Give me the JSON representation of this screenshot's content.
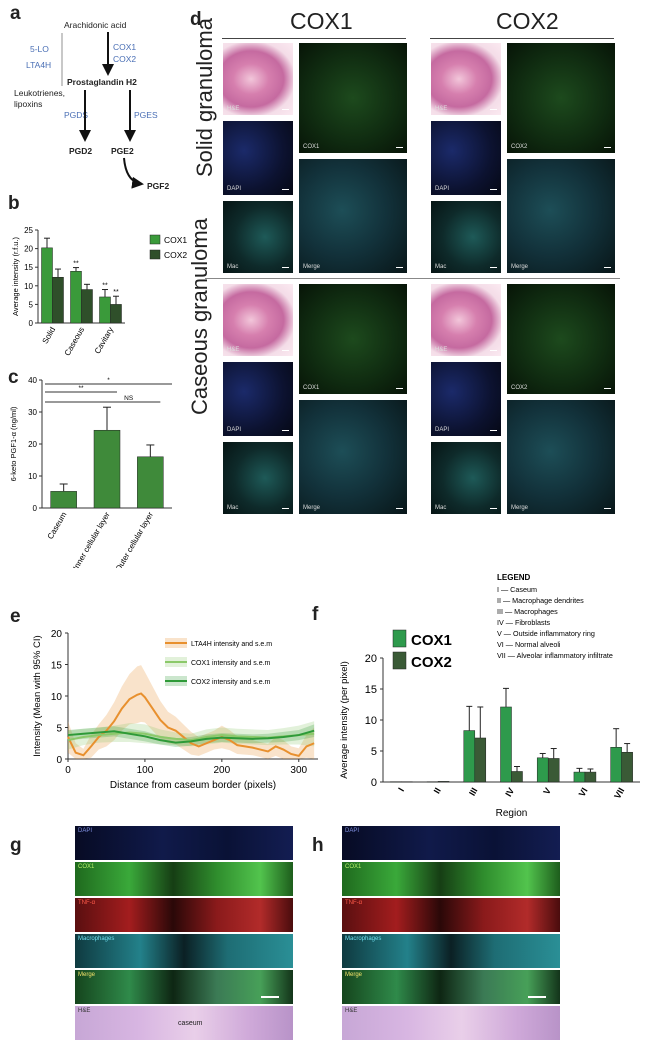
{
  "panel_a": {
    "label": "a",
    "arachidonic": "Arachidonic acid",
    "lo5": "5-LO",
    "lta4h": "LTA4H",
    "cox1": "COX1",
    "cox2": "COX2",
    "pgh2": "Prostaglandin H2",
    "leuko1": "Leukotrienes,",
    "leuko2": "lipoxins",
    "pgds": "PGDS",
    "pges": "PGES",
    "pgd2": "PGD2",
    "pge2": "PGE2",
    "pgf2": "PGF2",
    "accent_color": "#4a6fb5"
  },
  "panel_d": {
    "label": "d",
    "col1": "COX1",
    "col2": "COX2",
    "row1": "Solid granuloma",
    "row2": "Caseous granuloma",
    "tiles": {
      "he": "H&E",
      "dapi": "DAPI",
      "mac": "Mac",
      "cox1": "COX1",
      "cox2": "COX2",
      "merge": "Merge"
    }
  },
  "panel_g": {
    "label": "g",
    "strips": [
      "DAPI",
      "COX1",
      "TNF-α",
      "Macrophages",
      "Merge",
      "H&E"
    ],
    "caseum": "caseum"
  },
  "panel_h": {
    "label": "h",
    "strips": [
      "DAPI",
      "COX1",
      "TNF-α",
      "Macrophages",
      "Merge",
      "H&E"
    ]
  },
  "chart_data": [
    {
      "panel": "b",
      "type": "bar",
      "categories": [
        "Solid",
        "Caseous",
        "Cavitary"
      ],
      "ylabel": "Average intensity (r.f.u.)",
      "ylim": [
        0,
        25
      ],
      "yticks": [
        0,
        5,
        10,
        15,
        20,
        25
      ],
      "series": [
        {
          "name": "COX1",
          "values": [
            20.2,
            13.9,
            7.0
          ],
          "errors": [
            2.6,
            1.0,
            2.0
          ],
          "color": "#3a9a3a"
        },
        {
          "name": "COX2",
          "values": [
            12.3,
            9.0,
            5.0
          ],
          "errors": [
            2.2,
            1.4,
            2.2
          ],
          "color": "#2f4f2a"
        }
      ],
      "annotations": [
        {
          "category": "Caseous",
          "series": "COX1",
          "text": "**"
        },
        {
          "category": "Cavitary",
          "series": "COX1",
          "text": "**"
        },
        {
          "category": "Cavitary",
          "series": "COX2",
          "text": "**"
        }
      ],
      "legend": "right"
    },
    {
      "panel": "c",
      "type": "bar",
      "categories": [
        "Caseum",
        "Inner cellular layer",
        "Outer cellular layer"
      ],
      "ylabel": "6-keto PGF1-α (ng/ml)",
      "ylim": [
        0,
        40
      ],
      "yticks": [
        0,
        10,
        20,
        30,
        40
      ],
      "values": [
        5.2,
        24.3,
        16.0
      ],
      "errors": [
        2.3,
        7.2,
        3.7
      ],
      "color": "#3f8a3a",
      "brackets": [
        {
          "from": "Caseum",
          "to": "Outer cellular layer",
          "text": "*"
        },
        {
          "from": "Caseum",
          "to": "Inner cellular layer",
          "text": "**"
        },
        {
          "from": "Inner cellular layer",
          "to": "Outer cellular layer",
          "text": "NS"
        }
      ]
    },
    {
      "panel": "e",
      "type": "line",
      "xlabel": "Distance from caseum border (pixels)",
      "ylabel": "Intensity (Mean with 95% CI)",
      "xlim": [
        0,
        325
      ],
      "ylim": [
        0,
        20
      ],
      "xticks": [
        0,
        100,
        200,
        300
      ],
      "yticks": [
        0,
        5,
        10,
        15,
        20
      ],
      "legend": "top-right",
      "series": [
        {
          "name": "LTA4H intensity and s.e.m",
          "color": "#e8902e",
          "x": [
            0,
            10,
            20,
            30,
            40,
            50,
            60,
            70,
            80,
            90,
            95,
            100,
            110,
            120,
            130,
            140,
            150,
            160,
            170,
            180,
            190,
            200,
            210,
            220,
            230,
            240,
            250,
            260,
            270,
            280,
            290,
            300,
            310,
            320
          ],
          "y": [
            3.5,
            1.0,
            0.6,
            2.0,
            3.5,
            4.5,
            6.0,
            8.0,
            9.5,
            10.2,
            10.4,
            9.8,
            8.0,
            6.2,
            5.0,
            4.5,
            3.5,
            2.5,
            2.0,
            2.5,
            3.0,
            3.5,
            3.0,
            2.2,
            2.0,
            1.8,
            1.5,
            1.2,
            2.0,
            1.5,
            0.8,
            0.5,
            2.0,
            2.5
          ],
          "err": [
            2.5,
            1.5,
            1.0,
            1.8,
            2.0,
            2.5,
            3.0,
            3.5,
            4.0,
            4.5,
            4.5,
            4.0,
            3.5,
            3.0,
            2.5,
            2.2,
            2.0,
            1.8,
            1.5,
            1.5,
            1.5,
            1.8,
            1.6,
            1.4,
            1.3,
            1.2,
            1.2,
            1.2,
            1.5,
            1.5,
            1.2,
            1.2,
            1.8,
            2.5
          ]
        },
        {
          "name": "COX1 intensity and s.e.m",
          "color": "#8cc96a",
          "x": [
            0,
            20,
            40,
            60,
            80,
            100,
            120,
            140,
            160,
            180,
            200,
            220,
            240,
            260,
            280,
            300,
            320
          ],
          "y": [
            3.0,
            3.5,
            3.8,
            4.0,
            4.2,
            4.0,
            3.5,
            3.2,
            3.0,
            3.5,
            3.8,
            3.6,
            3.5,
            3.4,
            3.6,
            3.8,
            4.0
          ],
          "err": [
            1.5,
            1.3,
            1.2,
            1.3,
            1.5,
            1.5,
            1.2,
            1.0,
            1.0,
            1.2,
            1.2,
            1.2,
            1.2,
            1.2,
            1.3,
            1.5,
            2.0
          ]
        },
        {
          "name": "COX2 intensity and s.e.m",
          "color": "#2e9a38",
          "x": [
            0,
            20,
            40,
            60,
            80,
            100,
            120,
            140,
            160,
            180,
            200,
            220,
            240,
            260,
            280,
            300,
            320
          ],
          "y": [
            3.8,
            4.0,
            4.2,
            4.4,
            4.0,
            3.6,
            3.0,
            2.6,
            2.8,
            3.2,
            3.4,
            3.3,
            3.2,
            3.3,
            3.5,
            3.8,
            4.5
          ],
          "err": [
            0.8,
            0.8,
            0.8,
            0.8,
            0.8,
            0.8,
            0.7,
            0.7,
            0.7,
            0.7,
            0.7,
            0.7,
            0.7,
            0.7,
            0.8,
            0.8,
            1.0
          ]
        }
      ]
    },
    {
      "panel": "f",
      "type": "bar",
      "categories": [
        "I",
        "II",
        "III",
        "IV",
        "V",
        "VI",
        "VII"
      ],
      "xlabel": "Region",
      "ylabel": "Average intensity (per pixel)",
      "ylim": [
        0,
        20
      ],
      "yticks": [
        0,
        5,
        10,
        15,
        20
      ],
      "series": [
        {
          "name": "COX1",
          "values": [
            0.05,
            0.05,
            8.3,
            12.1,
            3.9,
            1.6,
            5.6
          ],
          "errors": [
            0,
            0,
            3.9,
            3.0,
            0.7,
            0.6,
            3.0
          ],
          "color": "#2e9a4c"
        },
        {
          "name": "COX2",
          "values": [
            0.05,
            0.1,
            7.1,
            1.7,
            3.8,
            1.6,
            4.8
          ],
          "errors": [
            0,
            0,
            5.0,
            0.8,
            1.6,
            0.5,
            1.4
          ],
          "color": "#3a5a36"
        }
      ],
      "legend_title": "LEGEND",
      "legend_items": [
        "I — Caseum",
        "II — Macrophage dendrites",
        "III — Macrophages",
        "IV — Fibroblasts",
        "V — Outside inflammatory ring",
        "VI — Normal alveoli",
        "VII — Alveolar inflammatory infiltrate"
      ]
    }
  ]
}
